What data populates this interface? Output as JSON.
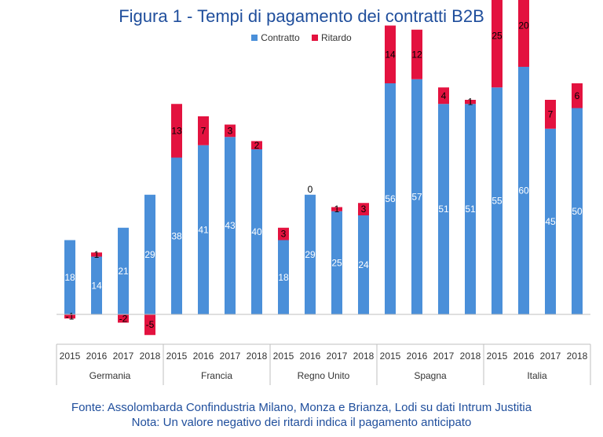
{
  "colors": {
    "contratto": "#4a8fd9",
    "ritardo": "#e3123f",
    "title": "#1f4e9c",
    "axis": "#bfbfbf"
  },
  "chart_data": {
    "type": "bar",
    "stacked": true,
    "title": "Figura 1 - Tempi di pagamento dei contratti B2B",
    "legend": {
      "position": "top",
      "entries": [
        "Contratto",
        "Ritardo"
      ]
    },
    "groups": [
      "Germania",
      "Francia",
      "Regno Unito",
      "Spagna",
      "Italia"
    ],
    "years": [
      "2015",
      "2016",
      "2017",
      "2018"
    ],
    "categories": [
      "Germania 2015",
      "Germania 2016",
      "Germania 2017",
      "Germania 2018",
      "Francia 2015",
      "Francia 2016",
      "Francia 2017",
      "Francia 2018",
      "Regno Unito 2015",
      "Regno Unito 2016",
      "Regno Unito 2017",
      "Regno Unito 2018",
      "Spagna 2015",
      "Spagna 2016",
      "Spagna 2017",
      "Spagna 2018",
      "Italia 2015",
      "Italia 2016",
      "Italia 2017",
      "Italia 2018"
    ],
    "series": [
      {
        "name": "Contratto",
        "values": [
          18,
          14,
          21,
          29,
          38,
          41,
          43,
          40,
          18,
          29,
          25,
          24,
          56,
          57,
          51,
          51,
          55,
          60,
          45,
          50
        ]
      },
      {
        "name": "Ritardo",
        "values": [
          -1,
          1,
          -2,
          -5,
          13,
          7,
          3,
          2,
          3,
          0,
          1,
          3,
          14,
          12,
          4,
          1,
          25,
          20,
          7,
          6
        ]
      }
    ],
    "ylim": [
      -6,
      82
    ],
    "grid": false
  },
  "footer": {
    "source": "Fonte: Assolombarda Confindustria Milano, Monza e Brianza, Lodi su dati Intrum Justitia",
    "note": "Nota: Un valore negativo dei ritardi indica il pagamento anticipato"
  }
}
